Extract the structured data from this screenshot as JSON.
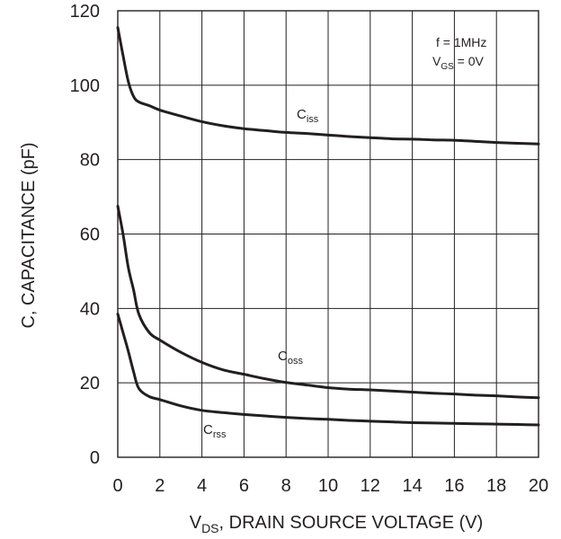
{
  "chart_data": {
    "type": "line",
    "xlabel": {
      "main": "V",
      "sub": "DS",
      "rest": ", DRAIN SOURCE VOLTAGE (V)"
    },
    "ylabel": "C, CAPACITANCE (pF)",
    "xlim": [
      0,
      20
    ],
    "ylim": [
      0,
      120
    ],
    "xticks": [
      0,
      2,
      4,
      6,
      8,
      10,
      12,
      14,
      16,
      18,
      20
    ],
    "yticks": [
      0,
      20,
      40,
      60,
      80,
      100,
      120
    ],
    "grid": true,
    "annotations": {
      "freq": "f = 1MHz",
      "vgs": {
        "main": "V",
        "sub": "GS",
        "rest": " = 0V"
      }
    },
    "series": [
      {
        "name": {
          "main": "C",
          "sub": "iss"
        },
        "x": [
          0,
          0.25,
          0.5,
          0.75,
          1,
          1.5,
          2,
          3,
          4,
          5,
          6,
          7,
          8,
          9,
          10,
          11,
          12,
          13,
          14,
          15,
          16,
          17,
          18,
          19,
          20
        ],
        "y": [
          115.5,
          108,
          101,
          97,
          95.5,
          94.5,
          93.3,
          91.7,
          90.2,
          89.1,
          88.3,
          87.8,
          87.3,
          87,
          86.6,
          86.2,
          85.9,
          85.6,
          85.5,
          85.3,
          85.2,
          84.9,
          84.6,
          84.4,
          84.2
        ]
      },
      {
        "name": {
          "main": "C",
          "sub": "oss"
        },
        "x": [
          0,
          0.25,
          0.5,
          0.75,
          1,
          1.5,
          2,
          3,
          4,
          5,
          6,
          7,
          8,
          9,
          10,
          11,
          12,
          13,
          14,
          15,
          16,
          17,
          18,
          19,
          20
        ],
        "y": [
          67.5,
          60,
          51,
          45,
          38.5,
          33.5,
          31.5,
          28.2,
          25.5,
          23.5,
          22.3,
          21.1,
          20.1,
          19.4,
          18.7,
          18.3,
          18.1,
          17.8,
          17.5,
          17.2,
          17,
          16.7,
          16.5,
          16.2,
          16
        ]
      },
      {
        "name": {
          "main": "C",
          "sub": "rss"
        },
        "x": [
          0,
          0.25,
          0.5,
          0.75,
          1,
          1.5,
          2,
          3,
          4,
          5,
          6,
          7,
          8,
          9,
          10,
          11,
          12,
          13,
          14,
          15,
          16,
          17,
          18,
          19,
          20
        ],
        "y": [
          38.5,
          33.5,
          28.5,
          23,
          18.5,
          16.3,
          15.5,
          13.8,
          12.6,
          12,
          11.5,
          11.1,
          10.7,
          10.4,
          10.2,
          9.9,
          9.7,
          9.5,
          9.3,
          9.2,
          9.1,
          9,
          8.9,
          8.8,
          8.7
        ]
      }
    ]
  }
}
